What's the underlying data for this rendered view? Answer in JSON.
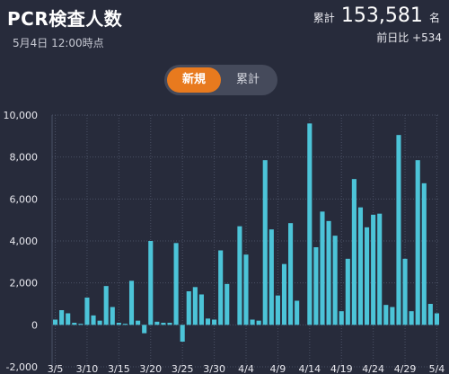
{
  "header": {
    "title": "PCR検査人数",
    "date": "5月4日 12:00時点",
    "total_label": "累計",
    "total_value": "153,581",
    "total_unit": "名",
    "diff_text": "前日比 +534"
  },
  "toggle": {
    "new_label": "新規",
    "cumulative_label": "累計",
    "selected": "new"
  },
  "colors": {
    "bar": "#4cc4d8",
    "background": "#272b3b",
    "grid": "#4a5064",
    "accent": "#e87a1e"
  },
  "chart_data": {
    "type": "bar",
    "title": "",
    "xlabel": "",
    "ylabel": "",
    "ylim": [
      -2000,
      10000
    ],
    "yticks": [
      -2000,
      0,
      2000,
      4000,
      6000,
      8000,
      10000
    ],
    "ytick_labels": [
      "-2,000",
      "0",
      "2,000",
      "4,000",
      "6,000",
      "8,000",
      "10,000"
    ],
    "grid": true,
    "x_tick_labels": [
      "3/5",
      "3/10",
      "3/15",
      "3/20",
      "3/25",
      "3/30",
      "4/4",
      "4/9",
      "4/14",
      "4/19",
      "4/24",
      "4/29",
      "5/4"
    ],
    "x_tick_every": 5,
    "values": [
      250,
      700,
      550,
      100,
      50,
      1300,
      450,
      200,
      1850,
      850,
      100,
      50,
      2100,
      200,
      -400,
      4000,
      150,
      100,
      100,
      3900,
      -800,
      1600,
      1800,
      1450,
      300,
      250,
      3550,
      1950,
      0,
      4700,
      3350,
      250,
      200,
      7850,
      4550,
      1400,
      2900,
      4850,
      1150,
      0,
      9600,
      3700,
      5400,
      4950,
      4250,
      650,
      3150,
      6950,
      5600,
      4650,
      5250,
      5300,
      950,
      850,
      9050,
      3150,
      650,
      7850,
      6750,
      1000,
      550
    ]
  }
}
